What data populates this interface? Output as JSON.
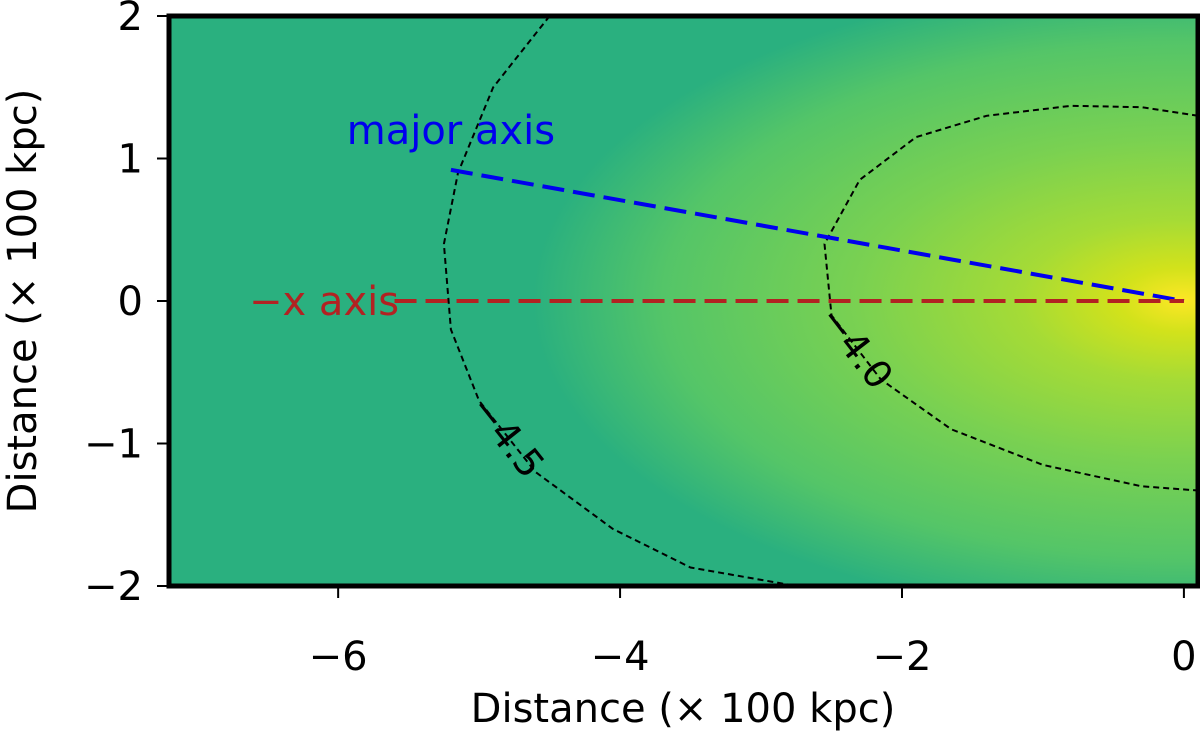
{
  "chart_data": {
    "type": "heatmap",
    "title": "",
    "xlabel": "Distance (× 100 kpc)",
    "ylabel": "Distance (× 100 kpc)",
    "xlim": [
      -7.2,
      0.1
    ],
    "ylim": [
      -2,
      2
    ],
    "xticks": [
      {
        "value": -6,
        "label": "−6"
      },
      {
        "value": -4,
        "label": "−4"
      },
      {
        "value": -2,
        "label": "−2"
      },
      {
        "value": 0,
        "label": "0"
      }
    ],
    "yticks": [
      {
        "value": 2,
        "label": "2"
      },
      {
        "value": 1,
        "label": "1"
      },
      {
        "value": 0,
        "label": "0"
      },
      {
        "value": -1,
        "label": "−1"
      },
      {
        "value": -2,
        "label": "−2"
      }
    ],
    "colormap": [
      "#2ab07f",
      "#54c568",
      "#7ad151",
      "#a5db36",
      "#d2e21b",
      "#fde725"
    ],
    "peak": {
      "x": 0,
      "y": 0
    },
    "contours": [
      {
        "level": -4.5,
        "label": "−4.5",
        "points": [
          [
            -4.5,
            2
          ],
          [
            -4.9,
            1.5
          ],
          [
            -5.15,
            0.9
          ],
          [
            -5.25,
            0.4
          ],
          [
            -5.2,
            -0.2
          ],
          [
            -5.0,
            -0.7
          ],
          [
            -4.6,
            -1.2
          ],
          [
            -4.05,
            -1.6
          ],
          [
            -3.5,
            -1.87
          ],
          [
            -2.75,
            -2.0
          ]
        ]
      },
      {
        "level": -4.0,
        "label": "−4.0",
        "points": [
          [
            0.1,
            1.3
          ],
          [
            -0.3,
            1.36
          ],
          [
            -0.8,
            1.37
          ],
          [
            -1.4,
            1.3
          ],
          [
            -1.9,
            1.15
          ],
          [
            -2.3,
            0.85
          ],
          [
            -2.55,
            0.4
          ],
          [
            -2.5,
            -0.1
          ],
          [
            -2.15,
            -0.55
          ],
          [
            -1.65,
            -0.9
          ],
          [
            -1.0,
            -1.15
          ],
          [
            -0.3,
            -1.3
          ],
          [
            0.1,
            -1.33
          ]
        ]
      }
    ],
    "series": [
      {
        "name": "major axis",
        "color": "#0000ee",
        "x": [
          -5.2,
          0
        ],
        "y": [
          0.92,
          0
        ]
      },
      {
        "name": "−x axis",
        "color": "#b22222",
        "x": [
          -5.6,
          0
        ],
        "y": [
          0,
          0
        ]
      }
    ],
    "annotations": [
      {
        "text": "major axis",
        "x": -5.2,
        "y": 1.2,
        "color": "#0000ee"
      },
      {
        "text": "−x axis",
        "x": -6.1,
        "y": 0,
        "color": "#b22222"
      }
    ],
    "grid": false,
    "legend": "none"
  }
}
